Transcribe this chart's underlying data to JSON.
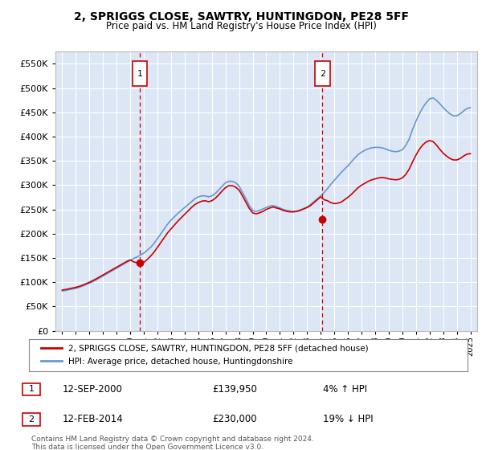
{
  "title": "2, SPRIGGS CLOSE, SAWTRY, HUNTINGDON, PE28 5FF",
  "subtitle": "Price paid vs. HM Land Registry's House Price Index (HPI)",
  "legend_line1": "2, SPRIGGS CLOSE, SAWTRY, HUNTINGDON, PE28 5FF (detached house)",
  "legend_line2": "HPI: Average price, detached house, Huntingdonshire",
  "sale1_date": "12-SEP-2000",
  "sale1_price": 139950,
  "sale1_pct": "4% ↑ HPI",
  "sale1_x": 2000.71,
  "sale2_date": "12-FEB-2014",
  "sale2_price": 230000,
  "sale2_pct": "19% ↓ HPI",
  "sale2_x": 2014.12,
  "footnote": "Contains HM Land Registry data © Crown copyright and database right 2024.\nThis data is licensed under the Open Government Licence v3.0.",
  "ylim": [
    0,
    575000
  ],
  "xlim": [
    1994.5,
    2025.5
  ],
  "background_color": "#dce6f5",
  "red_color": "#cc0000",
  "blue_color": "#6699cc",
  "grid_color": "#ffffff",
  "dashed_color": "#cc0000",
  "hpi_years": [
    1995.0,
    1995.25,
    1995.5,
    1995.75,
    1996.0,
    1996.25,
    1996.5,
    1996.75,
    1997.0,
    1997.25,
    1997.5,
    1997.75,
    1998.0,
    1998.25,
    1998.5,
    1998.75,
    1999.0,
    1999.25,
    1999.5,
    1999.75,
    2000.0,
    2000.25,
    2000.5,
    2000.75,
    2001.0,
    2001.25,
    2001.5,
    2001.75,
    2002.0,
    2002.25,
    2002.5,
    2002.75,
    2003.0,
    2003.25,
    2003.5,
    2003.75,
    2004.0,
    2004.25,
    2004.5,
    2004.75,
    2005.0,
    2005.25,
    2005.5,
    2005.75,
    2006.0,
    2006.25,
    2006.5,
    2006.75,
    2007.0,
    2007.25,
    2007.5,
    2007.75,
    2008.0,
    2008.25,
    2008.5,
    2008.75,
    2009.0,
    2009.25,
    2009.5,
    2009.75,
    2010.0,
    2010.25,
    2010.5,
    2010.75,
    2011.0,
    2011.25,
    2011.5,
    2011.75,
    2012.0,
    2012.25,
    2012.5,
    2012.75,
    2013.0,
    2013.25,
    2013.5,
    2013.75,
    2014.0,
    2014.25,
    2014.5,
    2014.75,
    2015.0,
    2015.25,
    2015.5,
    2015.75,
    2016.0,
    2016.25,
    2016.5,
    2016.75,
    2017.0,
    2017.25,
    2017.5,
    2017.75,
    2018.0,
    2018.25,
    2018.5,
    2018.75,
    2019.0,
    2019.25,
    2019.5,
    2019.75,
    2020.0,
    2020.25,
    2020.5,
    2020.75,
    2021.0,
    2021.25,
    2021.5,
    2021.75,
    2022.0,
    2022.25,
    2022.5,
    2022.75,
    2023.0,
    2023.25,
    2023.5,
    2023.75,
    2024.0,
    2024.25,
    2024.5,
    2024.75,
    2025.0
  ],
  "hpi_values": [
    82000,
    83000,
    84500,
    86000,
    87500,
    89500,
    92000,
    95000,
    98000,
    101000,
    105000,
    109000,
    113000,
    117000,
    121000,
    125000,
    129000,
    133000,
    137000,
    141000,
    145000,
    149000,
    152000,
    156000,
    160000,
    166000,
    172000,
    180000,
    190000,
    200000,
    210000,
    220000,
    228000,
    235000,
    242000,
    248000,
    254000,
    260000,
    266000,
    272000,
    276000,
    278000,
    278000,
    276000,
    278000,
    283000,
    290000,
    298000,
    305000,
    308000,
    308000,
    305000,
    298000,
    285000,
    272000,
    258000,
    248000,
    246000,
    248000,
    251000,
    254000,
    257000,
    258000,
    256000,
    253000,
    250000,
    248000,
    247000,
    246000,
    247000,
    249000,
    252000,
    255000,
    260000,
    266000,
    272000,
    278000,
    285000,
    293000,
    302000,
    310000,
    318000,
    326000,
    333000,
    340000,
    348000,
    356000,
    363000,
    368000,
    372000,
    375000,
    377000,
    378000,
    378000,
    377000,
    375000,
    372000,
    370000,
    369000,
    370000,
    373000,
    382000,
    395000,
    415000,
    432000,
    447000,
    460000,
    470000,
    478000,
    480000,
    475000,
    468000,
    460000,
    453000,
    447000,
    443000,
    443000,
    447000,
    453000,
    458000,
    460000
  ],
  "red_years": [
    1995.0,
    1995.25,
    1995.5,
    1995.75,
    1996.0,
    1996.25,
    1996.5,
    1996.75,
    1997.0,
    1997.25,
    1997.5,
    1997.75,
    1998.0,
    1998.25,
    1998.5,
    1998.75,
    1999.0,
    1999.25,
    1999.5,
    1999.75,
    2000.0,
    2000.25,
    2000.5,
    2000.75,
    2001.0,
    2001.25,
    2001.5,
    2001.75,
    2002.0,
    2002.25,
    2002.5,
    2002.75,
    2003.0,
    2003.25,
    2003.5,
    2003.75,
    2004.0,
    2004.25,
    2004.5,
    2004.75,
    2005.0,
    2005.25,
    2005.5,
    2005.75,
    2006.0,
    2006.25,
    2006.5,
    2006.75,
    2007.0,
    2007.25,
    2007.5,
    2007.75,
    2008.0,
    2008.25,
    2008.5,
    2008.75,
    2009.0,
    2009.25,
    2009.5,
    2009.75,
    2010.0,
    2010.25,
    2010.5,
    2010.75,
    2011.0,
    2011.25,
    2011.5,
    2011.75,
    2012.0,
    2012.25,
    2012.5,
    2012.75,
    2013.0,
    2013.25,
    2013.5,
    2013.75,
    2014.0,
    2014.25,
    2014.5,
    2014.75,
    2015.0,
    2015.25,
    2015.5,
    2015.75,
    2016.0,
    2016.25,
    2016.5,
    2016.75,
    2017.0,
    2017.25,
    2017.5,
    2017.75,
    2018.0,
    2018.25,
    2018.5,
    2018.75,
    2019.0,
    2019.25,
    2019.5,
    2019.75,
    2020.0,
    2020.25,
    2020.5,
    2020.75,
    2021.0,
    2021.25,
    2021.5,
    2021.75,
    2022.0,
    2022.25,
    2022.5,
    2022.75,
    2023.0,
    2023.25,
    2023.5,
    2023.75,
    2024.0,
    2024.25,
    2024.5,
    2024.75,
    2025.0
  ],
  "red_values": [
    84000,
    85000,
    86500,
    88000,
    89500,
    91500,
    94000,
    97000,
    100000,
    103500,
    107000,
    111000,
    115000,
    119000,
    123000,
    127000,
    131000,
    135000,
    139000,
    143000,
    146000,
    142000,
    140000,
    140000,
    141000,
    147000,
    154000,
    162000,
    172000,
    182000,
    192000,
    202000,
    210000,
    218000,
    226000,
    233000,
    240000,
    247000,
    254000,
    260000,
    264000,
    267000,
    268000,
    266000,
    268000,
    273000,
    280000,
    288000,
    295000,
    299000,
    299000,
    296000,
    290000,
    278000,
    265000,
    252000,
    243000,
    241000,
    243000,
    246000,
    250000,
    253000,
    255000,
    253000,
    251000,
    248000,
    246000,
    245000,
    245000,
    246000,
    248000,
    251000,
    254000,
    258000,
    264000,
    270000,
    276000,
    270000,
    268000,
    264000,
    262000,
    263000,
    265000,
    270000,
    275000,
    281000,
    288000,
    295000,
    300000,
    304000,
    308000,
    311000,
    313000,
    315000,
    316000,
    315000,
    313000,
    312000,
    311000,
    312000,
    315000,
    322000,
    333000,
    348000,
    362000,
    374000,
    383000,
    389000,
    392000,
    390000,
    383000,
    374000,
    366000,
    360000,
    355000,
    352000,
    352000,
    355000,
    360000,
    364000,
    365000
  ]
}
